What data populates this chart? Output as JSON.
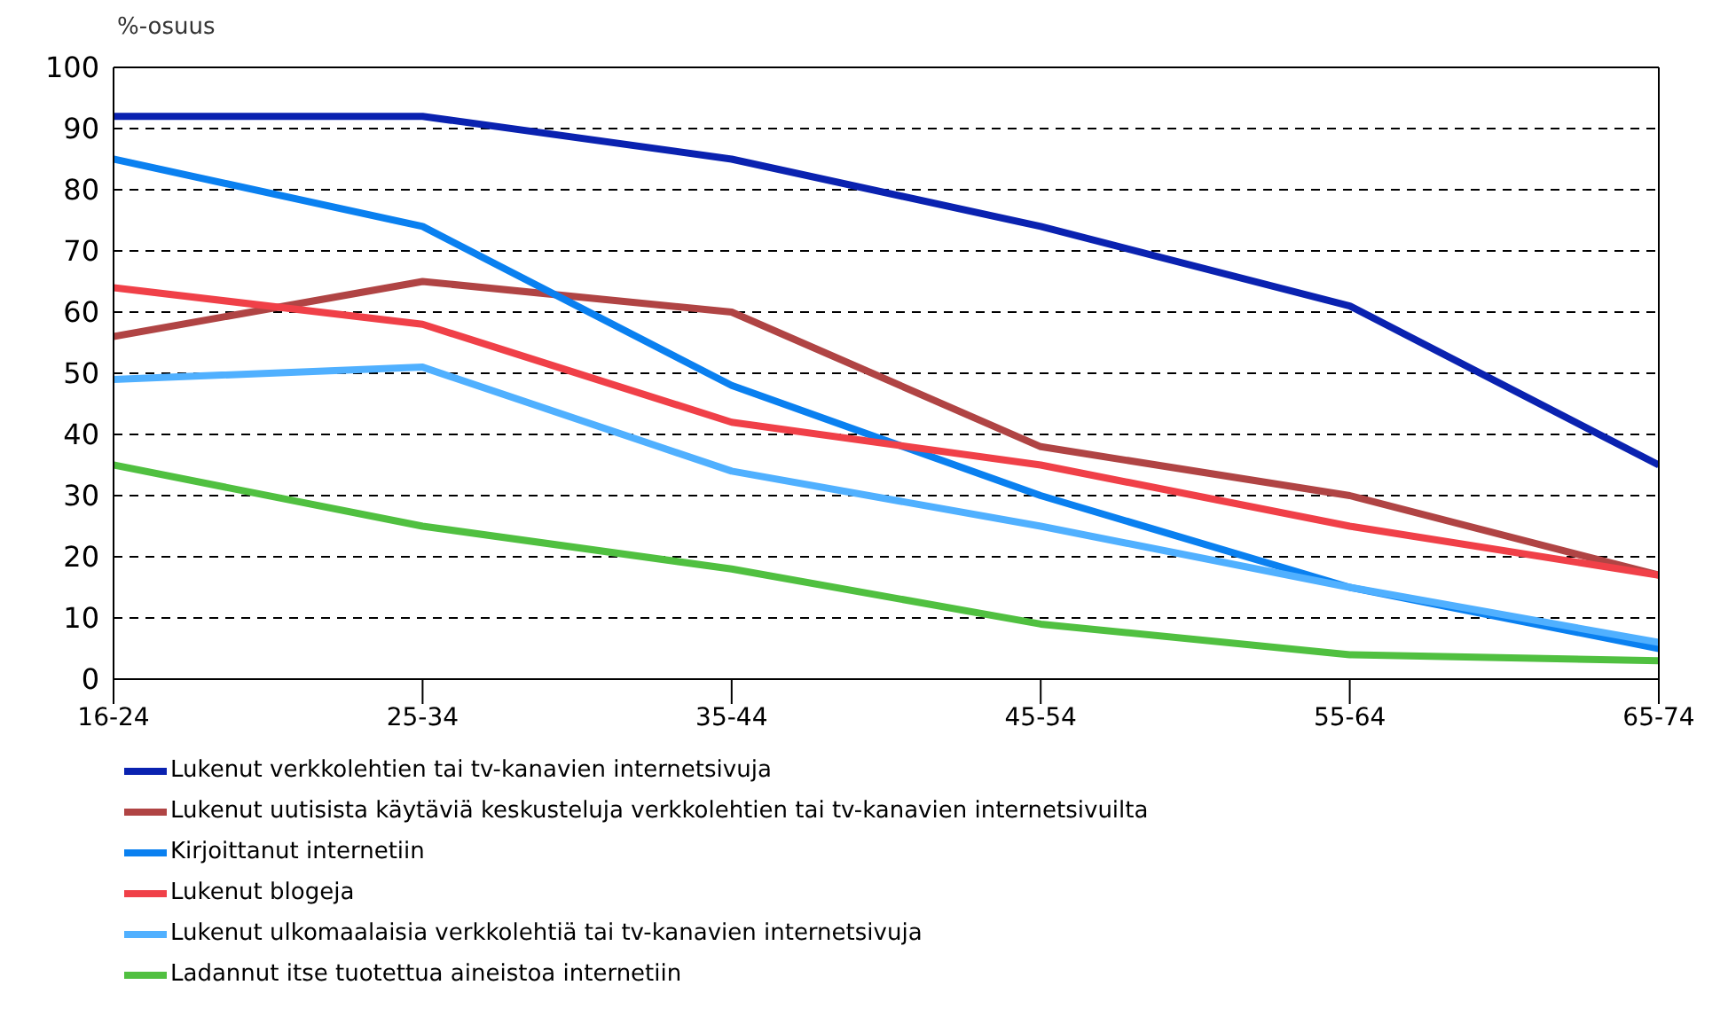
{
  "chart_data": {
    "type": "line",
    "ylabel": "%-osuus",
    "categories": [
      "16-24",
      "25-34",
      "35-44",
      "45-54",
      "55-64",
      "65-74"
    ],
    "ylim": [
      0,
      100
    ],
    "yticks": [
      0,
      10,
      20,
      30,
      40,
      50,
      60,
      70,
      80,
      90,
      100
    ],
    "grid": "y",
    "legend": "bottom",
    "marker": "none",
    "line_style": "solid",
    "series": [
      {
        "name": "Lukenut verkkolehtien tai tv-kanavien internetsivuja",
        "color": "#0a22b0",
        "values": [
          92,
          92,
          85,
          74,
          61,
          35
        ]
      },
      {
        "name": "Lukenut uutisista käytäviä keskusteluja verkkolehtien tai tv-kanavien internetsivuilta",
        "color": "#b04444",
        "values": [
          56,
          65,
          60,
          38,
          30,
          17
        ]
      },
      {
        "name": "Kirjoittanut internetiin",
        "color": "#0a80f0",
        "values": [
          85,
          74,
          48,
          30,
          15,
          5
        ]
      },
      {
        "name": "Lukenut blogeja",
        "color": "#f04048",
        "values": [
          64,
          58,
          42,
          35,
          25,
          17
        ]
      },
      {
        "name": "Lukenut ulkomaalaisia verkkolehtiä tai tv-kanavien internetsivuja",
        "color": "#50b0ff",
        "values": [
          49,
          51,
          34,
          25,
          15,
          6
        ]
      },
      {
        "name": "Ladannut itse tuotettua aineistoa internetiin",
        "color": "#50c040",
        "values": [
          35,
          25,
          18,
          9,
          4,
          3
        ]
      }
    ]
  }
}
